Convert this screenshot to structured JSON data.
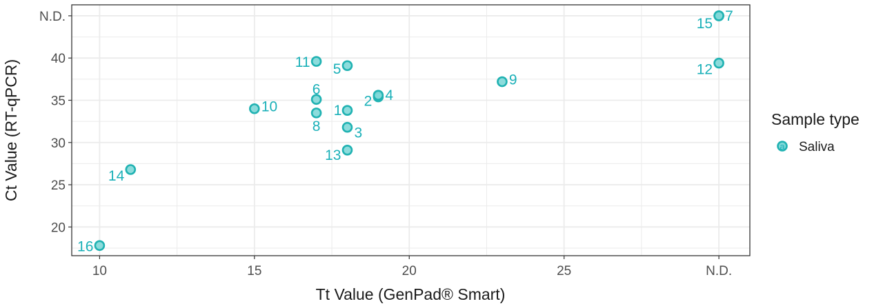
{
  "chart_data": {
    "type": "scatter",
    "xlabel": "Tt Value (GenPad® Smart)",
    "ylabel": "Ct Value (RT-qPCR)",
    "x_ticks": [
      {
        "value": 10,
        "label": "10"
      },
      {
        "value": 15,
        "label": "15"
      },
      {
        "value": 20,
        "label": "20"
      },
      {
        "value": 25,
        "label": "25"
      },
      {
        "value": 30,
        "label": "N.D."
      }
    ],
    "y_ticks": [
      {
        "value": 20,
        "label": "20"
      },
      {
        "value": 25,
        "label": "25"
      },
      {
        "value": 30,
        "label": "30"
      },
      {
        "value": 35,
        "label": "35"
      },
      {
        "value": 40,
        "label": "40"
      },
      {
        "value": 45,
        "label": "N.D."
      }
    ],
    "xlim": [
      9.1,
      31.0
    ],
    "ylim": [
      16.6,
      46.3
    ],
    "grid": true,
    "legend": {
      "title": "Sample type",
      "position": "right",
      "entries": [
        {
          "label": "Saliva",
          "key_glyph": "a"
        }
      ]
    },
    "colors": {
      "series": "#20b2b2",
      "point_fill": "#7fd8d8",
      "label": "#1ab0b8",
      "grid": "#ebebeb",
      "panel_border": "#333333"
    },
    "series": [
      {
        "name": "Saliva",
        "points": [
          {
            "id": "1",
            "x": 18,
            "y": 33.8
          },
          {
            "id": "2",
            "x": 19,
            "y": 35.4
          },
          {
            "id": "3",
            "x": 18,
            "y": 31.8
          },
          {
            "id": "4",
            "x": 19,
            "y": 35.6
          },
          {
            "id": "5",
            "x": 18,
            "y": 39.1
          },
          {
            "id": "6",
            "x": 17,
            "y": 35.1
          },
          {
            "id": "7",
            "x": 30,
            "y": 45.0
          },
          {
            "id": "8",
            "x": 17,
            "y": 33.5
          },
          {
            "id": "9",
            "x": 23,
            "y": 37.2
          },
          {
            "id": "10",
            "x": 15,
            "y": 34.0
          },
          {
            "id": "11",
            "x": 17,
            "y": 39.6
          },
          {
            "id": "12",
            "x": 30,
            "y": 39.4
          },
          {
            "id": "13",
            "x": 18,
            "y": 29.1
          },
          {
            "id": "14",
            "x": 11,
            "y": 26.8
          },
          {
            "id": "15",
            "x": 30,
            "y": 45.0
          },
          {
            "id": "16",
            "x": 10,
            "y": 17.8
          }
        ]
      }
    ]
  }
}
